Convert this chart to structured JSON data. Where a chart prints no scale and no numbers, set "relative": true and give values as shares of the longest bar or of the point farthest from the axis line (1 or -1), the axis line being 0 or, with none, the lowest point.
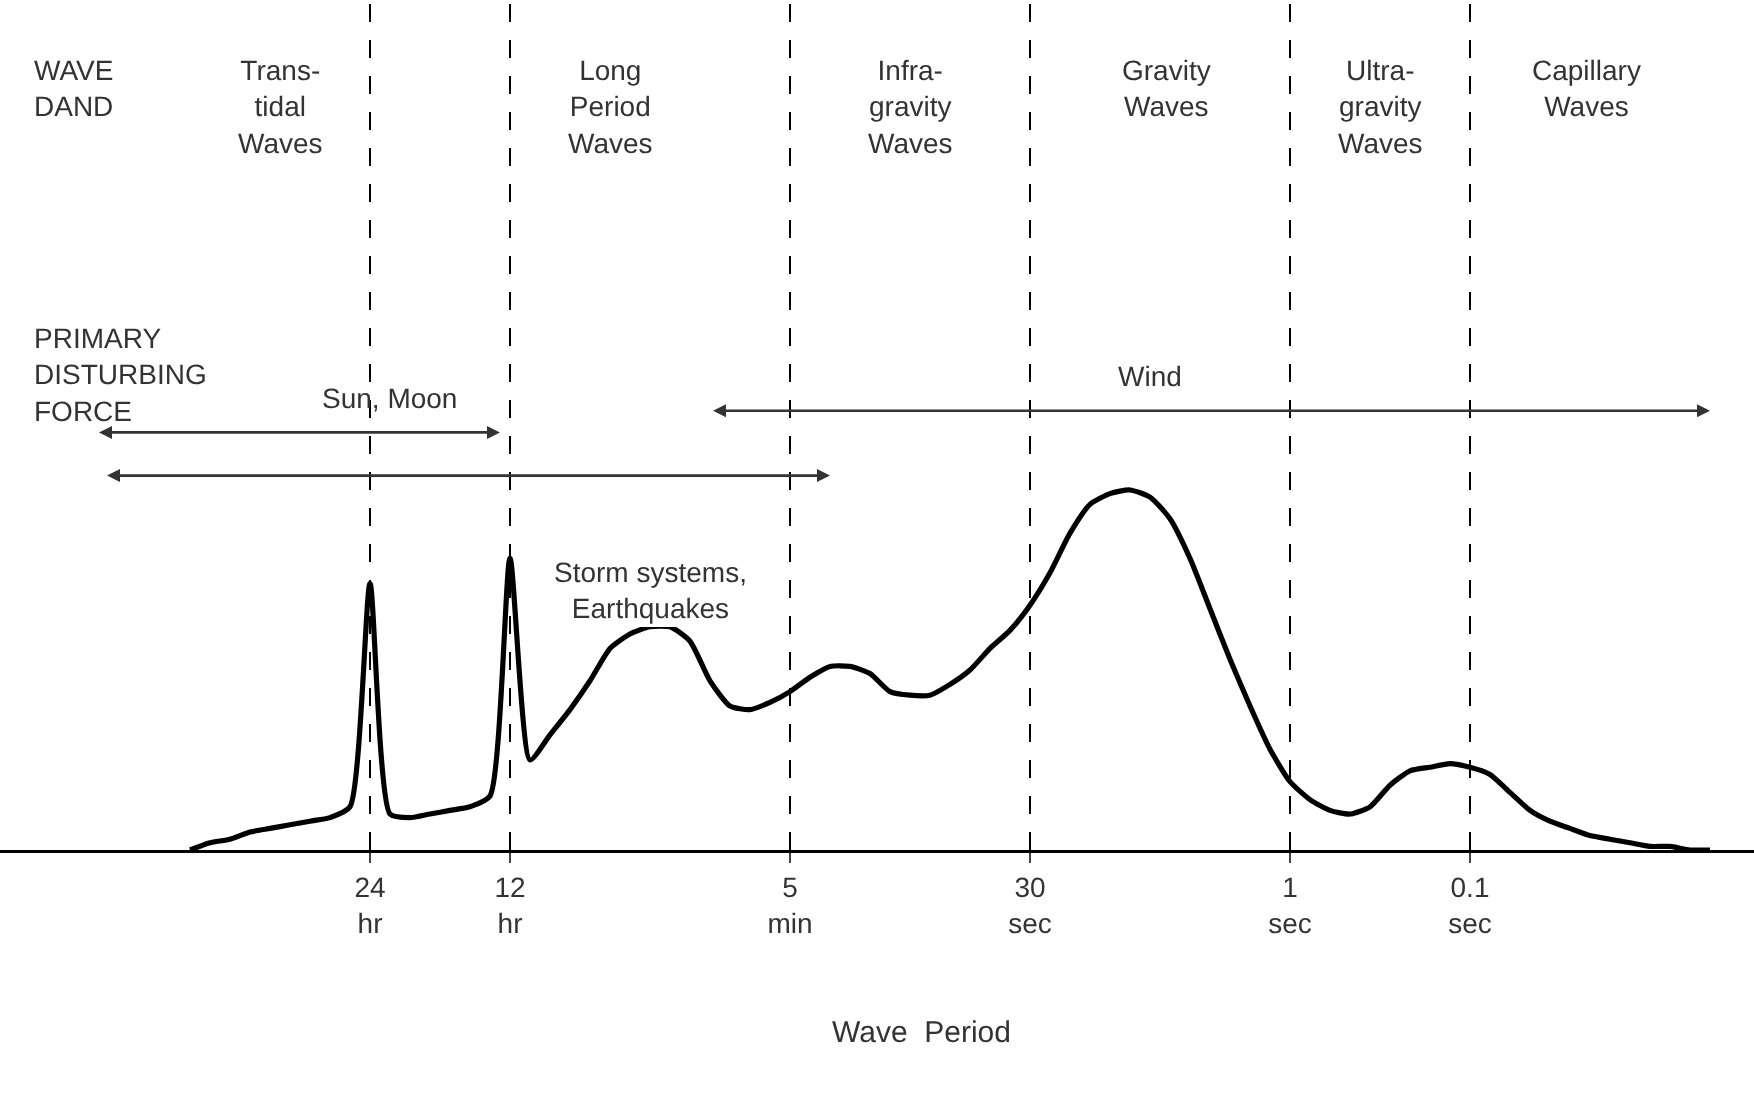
{
  "chart_data": {
    "type": "line",
    "relative": true,
    "color": "#000000",
    "line_style": "solid",
    "xlabel": "Wave  Period",
    "categories": [
      null,
      null,
      null,
      null,
      null,
      null,
      null,
      null,
      null,
      "24 hr",
      null,
      null,
      null,
      null,
      null,
      null,
      "12 hr",
      null,
      null,
      null,
      null,
      null,
      null,
      null,
      null,
      null,
      null,
      null,
      null,
      null,
      "5 min",
      null,
      null,
      null,
      null,
      null,
      null,
      null,
      null,
      null,
      null,
      null,
      "30 sec",
      null,
      null,
      null,
      null,
      null,
      null,
      null,
      null,
      null,
      null,
      null,
      null,
      "1 sec",
      null,
      null,
      null,
      null,
      null,
      null,
      null,
      null,
      "0.1 sec",
      null,
      null,
      null,
      null,
      null,
      null,
      null,
      null,
      null,
      null,
      null,
      null
    ],
    "values": [
      0,
      0.02,
      0.03,
      0.05,
      0.06,
      0.07,
      0.08,
      0.09,
      0.12,
      0.74,
      0.1,
      0.09,
      0.1,
      0.11,
      0.12,
      0.15,
      0.81,
      0.25,
      0.32,
      0.39,
      0.47,
      0.56,
      0.6,
      0.62,
      0.62,
      0.58,
      0.47,
      0.4,
      0.39,
      0.41,
      0.44,
      0.48,
      0.51,
      0.51,
      0.49,
      0.44,
      0.43,
      0.43,
      0.46,
      0.5,
      0.56,
      0.61,
      0.68,
      0.77,
      0.88,
      0.96,
      0.99,
      1,
      0.98,
      0.92,
      0.81,
      0.67,
      0.53,
      0.4,
      0.28,
      0.19,
      0.14,
      0.11,
      0.1,
      0.12,
      0.18,
      0.22,
      0.23,
      0.24,
      0.23,
      0.21,
      0.16,
      0.11,
      0.08,
      0.06,
      0.04,
      0.03,
      0.02,
      0.01,
      0.01,
      0,
      0
    ],
    "ref_lines": [
      {
        "axis": "x",
        "value": "24 hr",
        "line_style": "dashed"
      },
      {
        "axis": "x",
        "value": "12 hr",
        "line_style": "dashed"
      },
      {
        "axis": "x",
        "value": "5 min",
        "line_style": "dashed"
      },
      {
        "axis": "x",
        "value": "30 sec",
        "line_style": "dashed"
      },
      {
        "axis": "x",
        "value": "1 sec",
        "line_style": "dashed"
      },
      {
        "axis": "x",
        "value": "0.1 sec",
        "line_style": "dashed"
      }
    ],
    "annotations": [
      "WAVE\nDAND",
      "Trans-\ntidal\nWaves",
      "Long\nPeriod\nWaves",
      "Infra-\ngravity\nWaves",
      "Gravity\nWaves",
      "Ultra-\ngravity\nWaves",
      "Capillary\nWaves",
      "PRIMARY\nDISTURBING\nFORCE",
      "Sun, Moon",
      "Storm systems,\nEarthquakes",
      "Wind"
    ]
  }
}
